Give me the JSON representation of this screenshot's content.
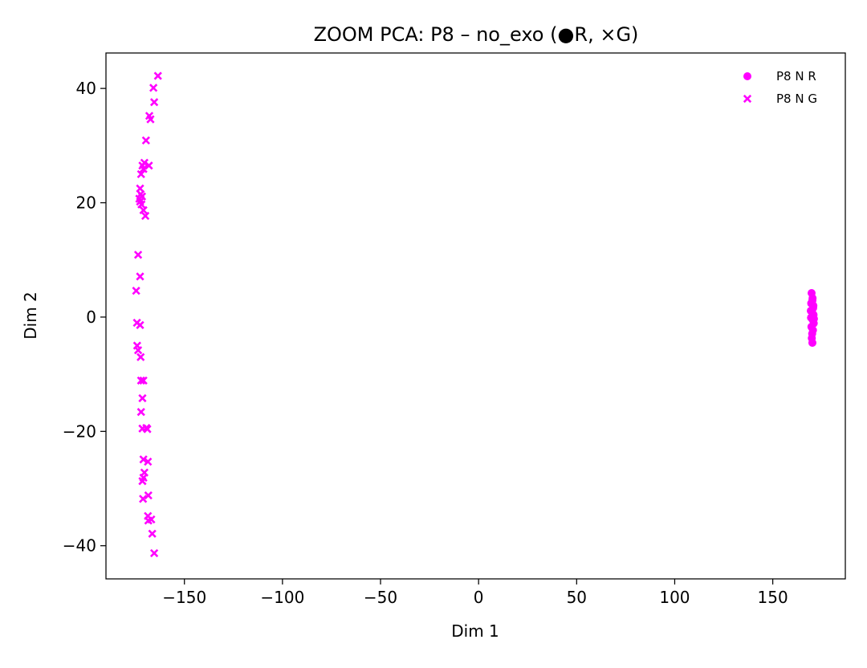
{
  "chart_data": {
    "type": "scatter",
    "title": "ZOOM PCA: P8 – no_exo (●R, ×G)",
    "xlabel": "Dim 1",
    "ylabel": "Dim 2",
    "xlim": [
      -190,
      187
    ],
    "ylim": [
      -45.8,
      46.2
    ],
    "x_ticks": [
      -150,
      -100,
      -50,
      0,
      50,
      100,
      150
    ],
    "x_tick_labels": [
      "−150",
      "−100",
      "−50",
      "0",
      "50",
      "100",
      "150"
    ],
    "y_ticks": [
      -40,
      -20,
      0,
      20,
      40
    ],
    "y_tick_labels": [
      "−40",
      "−20",
      "0",
      "20",
      "40"
    ],
    "grid": false,
    "legend_position": "top-right",
    "series": [
      {
        "name": "P8 N R",
        "marker": "circle",
        "color": "#ff00ff",
        "points": [
          [
            169.8,
            4.2
          ],
          [
            170.3,
            3.3
          ],
          [
            169.6,
            2.4
          ],
          [
            170.6,
            1.6
          ],
          [
            170.0,
            0.9
          ],
          [
            170.8,
            0.4
          ],
          [
            169.5,
            -0.1
          ],
          [
            170.4,
            -0.5
          ],
          [
            170.9,
            -1.1
          ],
          [
            169.7,
            -1.7
          ],
          [
            170.5,
            -2.3
          ],
          [
            170.1,
            -2.9
          ],
          [
            169.9,
            -3.7
          ],
          [
            170.2,
            -4.5
          ],
          [
            170.7,
            2.0
          ],
          [
            169.4,
            1.1
          ],
          [
            171.0,
            -0.3
          ],
          [
            170.2,
            2.9
          ]
        ]
      },
      {
        "name": "P8 N G",
        "marker": "x",
        "color": "#ff00ff",
        "points": [
          [
            -163.5,
            42.2
          ],
          [
            -165.8,
            40.1
          ],
          [
            -165.4,
            37.6
          ],
          [
            -167.9,
            35.2
          ],
          [
            -167.3,
            34.6
          ],
          [
            -169.6,
            30.9
          ],
          [
            -168.1,
            26.5
          ],
          [
            -170.4,
            27.0
          ],
          [
            -171.4,
            26.5
          ],
          [
            -170.9,
            25.9
          ],
          [
            -172.1,
            25.0
          ],
          [
            -172.6,
            22.5
          ],
          [
            -172.3,
            21.5
          ],
          [
            -173.0,
            20.7
          ],
          [
            -171.6,
            21.1
          ],
          [
            -172.6,
            20.2
          ],
          [
            -171.9,
            19.7
          ],
          [
            -170.9,
            18.7
          ],
          [
            -169.9,
            17.7
          ],
          [
            -173.6,
            10.9
          ],
          [
            -172.6,
            7.1
          ],
          [
            -174.6,
            4.6
          ],
          [
            -174.2,
            -1.0
          ],
          [
            -172.6,
            -1.4
          ],
          [
            -174.1,
            -5.0
          ],
          [
            -173.6,
            -5.8
          ],
          [
            -172.3,
            -7.0
          ],
          [
            -172.1,
            -11.1
          ],
          [
            -170.9,
            -11.1
          ],
          [
            -171.4,
            -14.2
          ],
          [
            -172.1,
            -16.6
          ],
          [
            -171.4,
            -19.5
          ],
          [
            -169.4,
            -19.4
          ],
          [
            -168.9,
            -19.6
          ],
          [
            -170.9,
            -24.9
          ],
          [
            -168.6,
            -25.3
          ],
          [
            -170.4,
            -27.2
          ],
          [
            -170.9,
            -28.1
          ],
          [
            -171.4,
            -28.7
          ],
          [
            -168.4,
            -31.2
          ],
          [
            -171.1,
            -31.8
          ],
          [
            -168.6,
            -34.8
          ],
          [
            -168.4,
            -35.6
          ],
          [
            -166.9,
            -35.4
          ],
          [
            -166.4,
            -37.9
          ],
          [
            -165.4,
            -41.3
          ]
        ]
      }
    ]
  }
}
